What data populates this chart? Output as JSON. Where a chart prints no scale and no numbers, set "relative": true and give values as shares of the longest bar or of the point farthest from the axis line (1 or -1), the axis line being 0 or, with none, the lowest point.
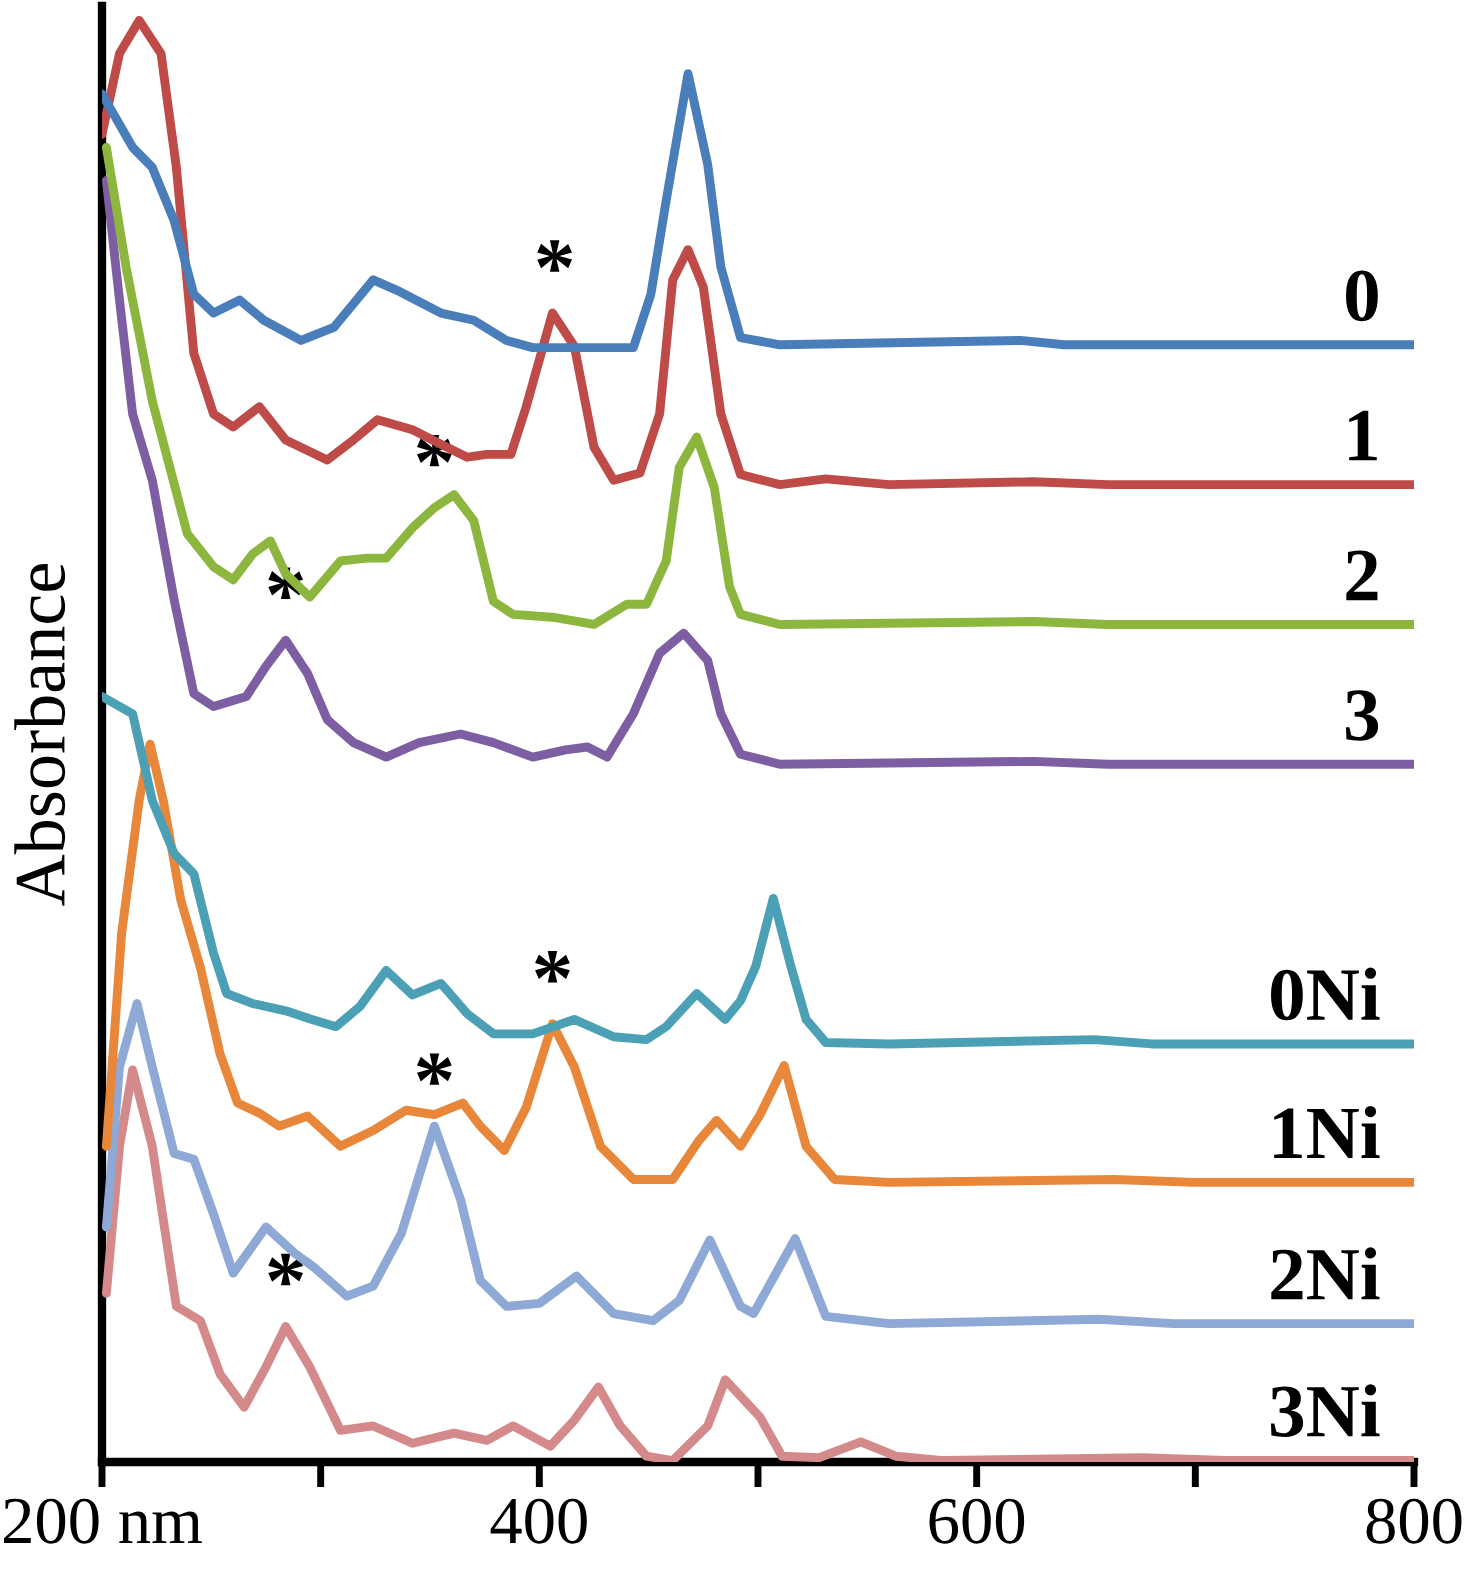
{
  "chart_data": {
    "type": "line",
    "relative": true,
    "ylabel": "Absorbance",
    "xlim": [
      200,
      800
    ],
    "xticks": [
      {
        "value": 200,
        "label": "200 nm"
      },
      {
        "value": 300,
        "label": null
      },
      400,
      {
        "value": 500,
        "label": null
      },
      600,
      {
        "value": 700,
        "label": null
      },
      800
    ],
    "grid": false,
    "legend": false,
    "marker": "none",
    "line_style": "solid",
    "series": [
      {
        "name": "0",
        "color": "#4a7ebb",
        "x": [
          200,
          214,
          223,
          233,
          242,
          251,
          263,
          274,
          291,
          306,
          324,
          336,
          355,
          370,
          385,
          397,
          443,
          451,
          458,
          468,
          477,
          483,
          492,
          510,
          620,
          640,
          800
        ],
        "values": [
          0.949,
          0.912,
          0.898,
          0.861,
          0.81,
          0.797,
          0.806,
          0.792,
          0.778,
          0.787,
          0.82,
          0.812,
          0.797,
          0.792,
          0.778,
          0.773,
          0.773,
          0.81,
          0.875,
          0.963,
          0.9,
          0.829,
          0.78,
          0.775,
          0.778,
          0.775,
          0.775
        ]
      },
      {
        "name": "1",
        "color": "#be4b48",
        "x": [
          200,
          208,
          217,
          227,
          234,
          242,
          251,
          260,
          272,
          284,
          303,
          315,
          326,
          342,
          355,
          367,
          376,
          387,
          394,
          406,
          416,
          425,
          434,
          446,
          455,
          461,
          468,
          475,
          483,
          492,
          510,
          531,
          560,
          626,
          660,
          800
        ],
        "values": [
          0.921,
          0.977,
          1.0,
          0.977,
          0.898,
          0.769,
          0.727,
          0.718,
          0.732,
          0.709,
          0.695,
          0.709,
          0.723,
          0.716,
          0.706,
          0.697,
          0.699,
          0.699,
          0.732,
          0.797,
          0.774,
          0.704,
          0.681,
          0.686,
          0.727,
          0.82,
          0.841,
          0.815,
          0.727,
          0.685,
          0.678,
          0.682,
          0.678,
          0.68,
          0.678,
          0.678
        ]
      },
      {
        "name": "2",
        "color": "#8db63f",
        "x": [
          202,
          211,
          223,
          239,
          251,
          260,
          269,
          277,
          284,
          295,
          309,
          321,
          330,
          342,
          352,
          361,
          370,
          379,
          388,
          406,
          425,
          440,
          449,
          458,
          464,
          472,
          480,
          487,
          492,
          510,
          626,
          660,
          800
        ],
        "values": [
          0.912,
          0.829,
          0.736,
          0.644,
          0.621,
          0.612,
          0.63,
          0.639,
          0.616,
          0.6,
          0.625,
          0.627,
          0.627,
          0.648,
          0.662,
          0.671,
          0.653,
          0.597,
          0.588,
          0.586,
          0.581,
          0.595,
          0.595,
          0.625,
          0.69,
          0.711,
          0.676,
          0.607,
          0.588,
          0.581,
          0.583,
          0.581,
          0.581
        ]
      },
      {
        "name": "3",
        "color": "#7d5ea3",
        "x": [
          202,
          208,
          214,
          223,
          233,
          242,
          251,
          266,
          275,
          284,
          294,
          303,
          315,
          330,
          345,
          364,
          379,
          397,
          412,
          422,
          431,
          443,
          455,
          466,
          477,
          483,
          492,
          510,
          626,
          660,
          800
        ],
        "values": [
          0.889,
          0.806,
          0.727,
          0.681,
          0.598,
          0.533,
          0.524,
          0.531,
          0.552,
          0.57,
          0.547,
          0.515,
          0.499,
          0.489,
          0.499,
          0.505,
          0.499,
          0.489,
          0.494,
          0.496,
          0.489,
          0.519,
          0.561,
          0.575,
          0.556,
          0.519,
          0.491,
          0.484,
          0.486,
          0.484,
          0.484
        ]
      },
      {
        "name": "0Ni",
        "color": "#4ba0b5",
        "x": [
          200,
          214,
          223,
          233,
          242,
          251,
          257,
          269,
          284,
          296,
          307,
          318,
          330,
          342,
          355,
          367,
          379,
          397,
          416,
          434,
          449,
          458,
          472,
          485,
          492,
          499,
          507,
          515,
          522,
          531,
          560,
          654,
          680,
          800
        ],
        "values": [
          0.531,
          0.519,
          0.459,
          0.422,
          0.408,
          0.353,
          0.325,
          0.318,
          0.313,
          0.307,
          0.302,
          0.316,
          0.341,
          0.324,
          0.332,
          0.311,
          0.297,
          0.297,
          0.307,
          0.295,
          0.293,
          0.302,
          0.325,
          0.307,
          0.32,
          0.344,
          0.391,
          0.344,
          0.307,
          0.291,
          0.29,
          0.293,
          0.29,
          0.29
        ]
      },
      {
        "name": "1Ni",
        "color": "#e8873a",
        "x": [
          202,
          209,
          217,
          222,
          228,
          236,
          245,
          254,
          262,
          272,
          281,
          294,
          309,
          324,
          339,
          352,
          365,
          373,
          384,
          394,
          406,
          416,
          428,
          443,
          461,
          473,
          481,
          492,
          501,
          512,
          522,
          535,
          560,
          663,
          700,
          800
        ],
        "values": [
          0.219,
          0.367,
          0.459,
          0.498,
          0.459,
          0.39,
          0.343,
          0.283,
          0.249,
          0.242,
          0.233,
          0.24,
          0.219,
          0.23,
          0.244,
          0.241,
          0.249,
          0.233,
          0.216,
          0.246,
          0.304,
          0.274,
          0.219,
          0.196,
          0.196,
          0.223,
          0.237,
          0.219,
          0.241,
          0.275,
          0.219,
          0.196,
          0.194,
          0.196,
          0.194,
          0.194
        ]
      },
      {
        "name": "2Ni",
        "color": "#8ea9d6",
        "x": [
          202,
          208,
          216,
          223,
          233,
          242,
          251,
          260,
          275,
          288,
          297,
          312,
          324,
          337,
          352,
          364,
          373,
          385,
          400,
          417,
          434,
          452,
          464,
          478,
          492,
          498,
          517,
          531,
          560,
          656,
          690,
          800
        ],
        "values": [
          0.163,
          0.274,
          0.318,
          0.274,
          0.214,
          0.21,
          0.172,
          0.131,
          0.163,
          0.145,
          0.135,
          0.115,
          0.122,
          0.159,
          0.233,
          0.182,
          0.126,
          0.108,
          0.11,
          0.129,
          0.103,
          0.098,
          0.112,
          0.154,
          0.108,
          0.103,
          0.155,
          0.101,
          0.096,
          0.099,
          0.096,
          0.096
        ]
      },
      {
        "name": "3Ni",
        "color": "#d48a8a",
        "x": [
          202,
          208,
          214,
          223,
          234,
          245,
          254,
          265,
          275,
          284,
          295,
          309,
          324,
          342,
          361,
          376,
          388,
          405,
          416,
          427,
          437,
          449,
          461,
          477,
          485,
          501,
          511,
          528,
          547,
          563,
          585,
          676,
          714,
          800
        ],
        "values": [
          0.117,
          0.219,
          0.272,
          0.219,
          0.108,
          0.098,
          0.061,
          0.038,
          0.066,
          0.094,
          0.066,
          0.022,
          0.025,
          0.013,
          0.02,
          0.015,
          0.025,
          0.011,
          0.029,
          0.052,
          0.025,
          0.004,
          0.001,
          0.025,
          0.057,
          0.031,
          0.004,
          0.003,
          0.014,
          0.004,
          0.001,
          0.003,
          0.001,
          0.001
        ]
      }
    ],
    "annotations": [
      {
        "text": "*",
        "x": 407,
        "y": 0.797
      },
      {
        "text": "*",
        "x": 352,
        "y": 0.662
      },
      {
        "text": "*",
        "x": 284,
        "y": 0.57
      },
      {
        "text": "*",
        "x": 406,
        "y": 0.304
      },
      {
        "text": "*",
        "x": 352,
        "y": 0.233
      },
      {
        "text": "*",
        "x": 284,
        "y": 0.094
      }
    ]
  }
}
